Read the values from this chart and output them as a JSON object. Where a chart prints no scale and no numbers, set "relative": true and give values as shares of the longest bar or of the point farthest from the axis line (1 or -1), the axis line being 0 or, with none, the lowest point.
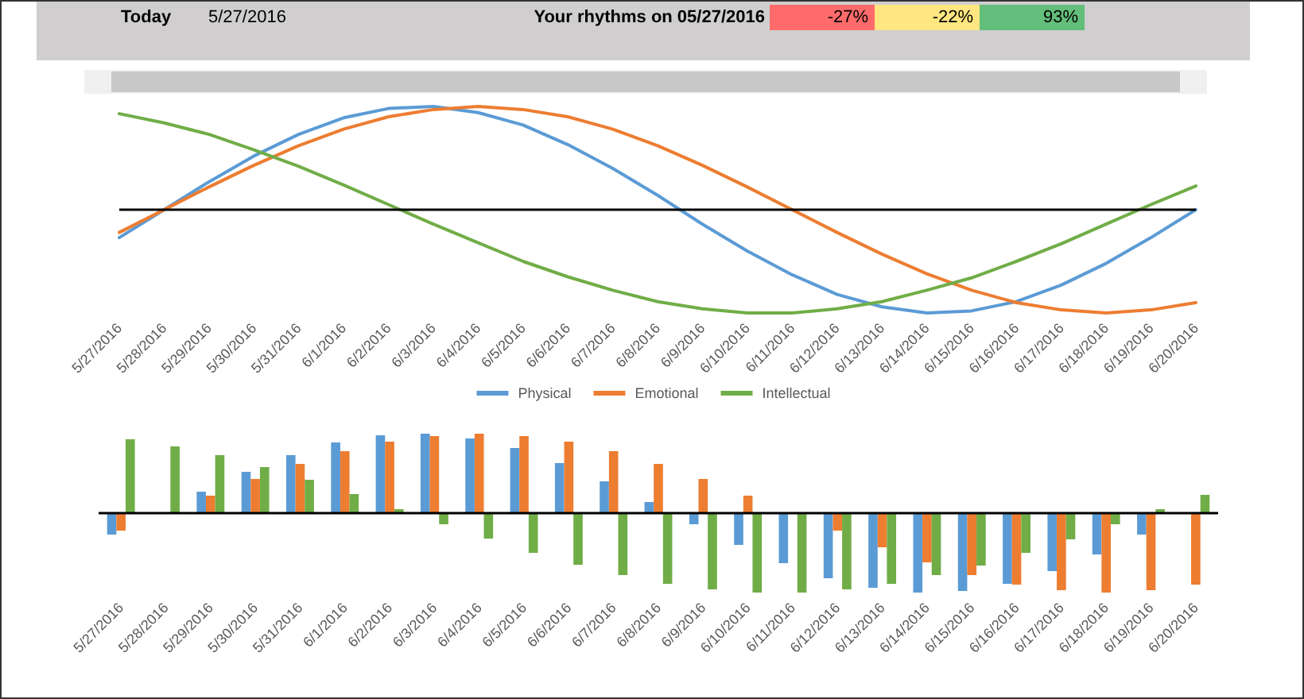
{
  "chart_data": [
    {
      "type": "other",
      "annotations": [
        "Today",
        "5/27/2016",
        "Your rhythms on 05/27/2016",
        "-27%",
        "-22%",
        "93%"
      ]
    },
    {
      "type": "line",
      "relative": true,
      "legend": "bottom",
      "grid": false,
      "marker": "none",
      "line_style": "solid",
      "categories": [
        "5/27/2016",
        "5/28/2016",
        "5/29/2016",
        "5/30/2016",
        "5/31/2016",
        "6/1/2016",
        "6/2/2016",
        "6/3/2016",
        "6/4/2016",
        "6/5/2016",
        "6/6/2016",
        "6/7/2016",
        "6/8/2016",
        "6/9/2016",
        "6/10/2016",
        "6/11/2016",
        "6/12/2016",
        "6/13/2016",
        "6/14/2016",
        "6/15/2016",
        "6/16/2016",
        "6/17/2016",
        "6/18/2016",
        "6/19/2016",
        "6/20/2016"
      ],
      "series": [
        {
          "name": "Physical",
          "color": "#5b9bd5",
          "values": [
            -0.27,
            0,
            0.27,
            0.52,
            0.73,
            0.89,
            0.98,
            1.0,
            0.94,
            0.82,
            0.63,
            0.4,
            0.14,
            -0.14,
            -0.4,
            -0.63,
            -0.82,
            -0.94,
            -1.0,
            -0.98,
            -0.89,
            -0.73,
            -0.52,
            -0.27,
            0
          ]
        },
        {
          "name": "Emotional",
          "color": "#ed7d31",
          "values": [
            -0.22,
            0,
            0.22,
            0.43,
            0.62,
            0.78,
            0.9,
            0.97,
            1.0,
            0.97,
            0.9,
            0.78,
            0.62,
            0.43,
            0.22,
            0,
            -0.22,
            -0.43,
            -0.62,
            -0.78,
            -0.9,
            -0.97,
            -1.0,
            -0.97,
            -0.9
          ]
        },
        {
          "name": "Intellectual",
          "color": "#70ad47",
          "values": [
            0.93,
            0.84,
            0.73,
            0.58,
            0.42,
            0.24,
            0.05,
            -0.14,
            -0.32,
            -0.5,
            -0.65,
            -0.78,
            -0.89,
            -0.96,
            -1.0,
            -1.0,
            -0.96,
            -0.89,
            -0.78,
            -0.66,
            -0.5,
            -0.33,
            -0.14,
            0.05,
            0.23
          ]
        }
      ]
    },
    {
      "type": "bar",
      "relative": true,
      "grid": false,
      "categories": [
        "5/27/2016",
        "5/28/2016",
        "5/29/2016",
        "5/30/2016",
        "5/31/2016",
        "6/1/2016",
        "6/2/2016",
        "6/3/2016",
        "6/4/2016",
        "6/5/2016",
        "6/6/2016",
        "6/7/2016",
        "6/8/2016",
        "6/9/2016",
        "6/10/2016",
        "6/11/2016",
        "6/12/2016",
        "6/13/2016",
        "6/14/2016",
        "6/15/2016",
        "6/16/2016",
        "6/17/2016",
        "6/18/2016",
        "6/19/2016",
        "6/20/2016"
      ],
      "series": [
        {
          "color": "#5b9bd5",
          "values": [
            -0.27,
            0,
            0.27,
            0.52,
            0.73,
            0.89,
            0.98,
            1.0,
            0.94,
            0.82,
            0.63,
            0.4,
            0.14,
            -0.14,
            -0.4,
            -0.63,
            -0.82,
            -0.94,
            -1.0,
            -0.98,
            -0.89,
            -0.73,
            -0.52,
            -0.27,
            0
          ]
        },
        {
          "color": "#ed7d31",
          "values": [
            -0.22,
            0,
            0.22,
            0.43,
            0.62,
            0.78,
            0.9,
            0.97,
            1.0,
            0.97,
            0.9,
            0.78,
            0.62,
            0.43,
            0.22,
            0,
            -0.22,
            -0.43,
            -0.62,
            -0.78,
            -0.9,
            -0.97,
            -1.0,
            -0.97,
            -0.9
          ]
        },
        {
          "color": "#70ad47",
          "values": [
            0.93,
            0.84,
            0.73,
            0.58,
            0.42,
            0.24,
            0.05,
            -0.14,
            -0.32,
            -0.5,
            -0.65,
            -0.78,
            -0.89,
            -0.96,
            -1.0,
            -1.0,
            -0.96,
            -0.89,
            -0.78,
            -0.66,
            -0.5,
            -0.33,
            -0.14,
            0.05,
            0.23
          ]
        }
      ]
    }
  ]
}
